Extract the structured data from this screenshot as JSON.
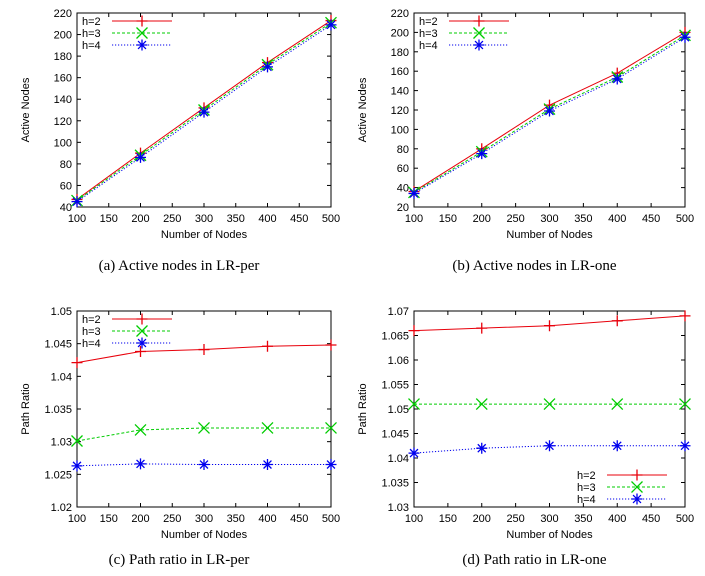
{
  "chart_data": [
    {
      "type": "line",
      "caption": "(a) Active nodes in LR-per",
      "xlabel": "Number of Nodes",
      "ylabel": "Active Nodes",
      "xlim": [
        100,
        500
      ],
      "ylim": [
        40,
        220
      ],
      "xticks": [
        100,
        150,
        200,
        250,
        300,
        350,
        400,
        450,
        500
      ],
      "yticks": [
        40,
        60,
        80,
        100,
        120,
        140,
        160,
        180,
        200,
        220
      ],
      "legend_position": "top-left",
      "x": [
        100,
        200,
        300,
        400,
        500
      ],
      "series": [
        {
          "name": "h=2",
          "values": [
            47,
            90,
            132,
            174,
            213
          ],
          "color": "#e8000b",
          "marker": "plus",
          "dash": "solid"
        },
        {
          "name": "h=3",
          "values": [
            46,
            88,
            130,
            172,
            211
          ],
          "color": "#00cc00",
          "marker": "x",
          "dash": "dashed"
        },
        {
          "name": "h=4",
          "values": [
            45,
            86,
            128,
            170,
            209
          ],
          "color": "#0000ee",
          "marker": "star",
          "dash": "dotted"
        }
      ]
    },
    {
      "type": "line",
      "caption": "(b) Active nodes in LR-one",
      "xlabel": "Number of Nodes",
      "ylabel": "Active Nodes",
      "xlim": [
        100,
        500
      ],
      "ylim": [
        20,
        220
      ],
      "xticks": [
        100,
        150,
        200,
        250,
        300,
        350,
        400,
        450,
        500
      ],
      "yticks": [
        20,
        40,
        60,
        80,
        100,
        120,
        140,
        160,
        180,
        200,
        220
      ],
      "legend_position": "top-left",
      "x": [
        100,
        200,
        300,
        400,
        500
      ],
      "series": [
        {
          "name": "h=2",
          "values": [
            36,
            80,
            125,
            158,
            200
          ],
          "color": "#e8000b",
          "marker": "plus",
          "dash": "solid"
        },
        {
          "name": "h=3",
          "values": [
            35,
            77,
            121,
            154,
            197
          ],
          "color": "#00cc00",
          "marker": "x",
          "dash": "dashed"
        },
        {
          "name": "h=4",
          "values": [
            34,
            75,
            119,
            152,
            195
          ],
          "color": "#0000ee",
          "marker": "star",
          "dash": "dotted"
        }
      ]
    },
    {
      "type": "line",
      "caption": "(c) Path ratio in LR-per",
      "xlabel": "Number of Nodes",
      "ylabel": "Path Ratio",
      "xlim": [
        100,
        500
      ],
      "ylim": [
        1.02,
        1.05
      ],
      "xticks": [
        100,
        150,
        200,
        250,
        300,
        350,
        400,
        450,
        500
      ],
      "yticks": [
        "1.02",
        "1.025",
        "1.03",
        "1.035",
        "1.04",
        "1.045",
        "1.05"
      ],
      "legend_position": "top-left",
      "x": [
        100,
        200,
        300,
        400,
        500
      ],
      "series": [
        {
          "name": "h=2",
          "values": [
            1.0421,
            1.0438,
            1.0441,
            1.0446,
            1.0448
          ],
          "color": "#e8000b",
          "marker": "plus",
          "dash": "solid"
        },
        {
          "name": "h=3",
          "values": [
            1.0301,
            1.0318,
            1.0321,
            1.0321,
            1.0321
          ],
          "color": "#00cc00",
          "marker": "x",
          "dash": "dashed"
        },
        {
          "name": "h=4",
          "values": [
            1.0263,
            1.0266,
            1.0265,
            1.0265,
            1.0265
          ],
          "color": "#0000ee",
          "marker": "star",
          "dash": "dotted"
        }
      ]
    },
    {
      "type": "line",
      "caption": "(d) Path ratio in LR-one",
      "xlabel": "Number of Nodes",
      "ylabel": "Path Ratio",
      "xlim": [
        100,
        500
      ],
      "ylim": [
        1.03,
        1.07
      ],
      "xticks": [
        100,
        150,
        200,
        250,
        300,
        350,
        400,
        450,
        500
      ],
      "yticks": [
        "1.03",
        "1.035",
        "1.04",
        "1.045",
        "1.05",
        "1.055",
        "1.06",
        "1.065",
        "1.07"
      ],
      "legend_position": "bottom-right",
      "x": [
        100,
        200,
        300,
        400,
        500
      ],
      "series": [
        {
          "name": "h=2",
          "values": [
            1.066,
            1.0665,
            1.067,
            1.068,
            1.069
          ],
          "color": "#e8000b",
          "marker": "plus",
          "dash": "solid"
        },
        {
          "name": "h=3",
          "values": [
            1.051,
            1.051,
            1.051,
            1.051,
            1.051
          ],
          "color": "#00cc00",
          "marker": "x",
          "dash": "dashed"
        },
        {
          "name": "h=4",
          "values": [
            1.041,
            1.042,
            1.0425,
            1.0425,
            1.0425
          ],
          "color": "#0000ee",
          "marker": "star",
          "dash": "dotted"
        }
      ]
    }
  ]
}
